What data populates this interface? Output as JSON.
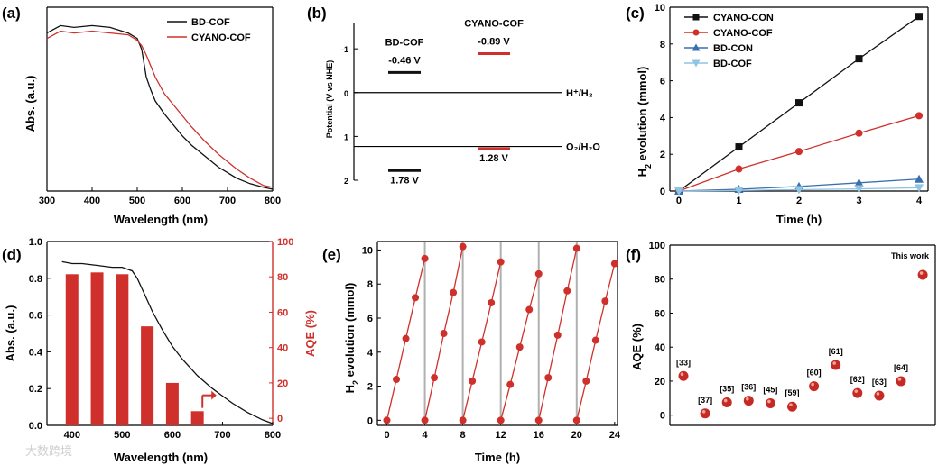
{
  "colors": {
    "black": "#111111",
    "red": "#d0302b",
    "blue": "#3c6fb0",
    "lightblue": "#8fc4e3",
    "gray": "#b0b0b0"
  },
  "watermark": "大数跨境",
  "chart_data": [
    {
      "panel": "(a)",
      "type": "line",
      "xlabel": "Wavelength (nm)",
      "ylabel": "Abs. (a.u.)",
      "xlim": [
        300,
        800
      ],
      "xticks": [
        300,
        400,
        500,
        600,
        700,
        800
      ],
      "legend": "top-right",
      "series": [
        {
          "name": "BD-COF",
          "color": "black",
          "x": [
            300,
            330,
            360,
            400,
            440,
            480,
            500,
            510,
            520,
            530,
            540,
            560,
            580,
            600,
            620,
            650,
            680,
            700,
            720,
            750,
            780,
            800
          ],
          "y": [
            0.86,
            0.9,
            0.89,
            0.9,
            0.89,
            0.86,
            0.83,
            0.77,
            0.62,
            0.55,
            0.49,
            0.42,
            0.36,
            0.3,
            0.25,
            0.19,
            0.13,
            0.1,
            0.07,
            0.04,
            0.02,
            0.01
          ]
        },
        {
          "name": "CYANO-COF",
          "color": "red",
          "x": [
            300,
            330,
            360,
            400,
            440,
            480,
            500,
            510,
            520,
            530,
            540,
            560,
            580,
            600,
            620,
            650,
            680,
            700,
            720,
            750,
            780,
            800
          ],
          "y": [
            0.83,
            0.87,
            0.86,
            0.87,
            0.86,
            0.85,
            0.82,
            0.79,
            0.74,
            0.68,
            0.62,
            0.53,
            0.47,
            0.41,
            0.35,
            0.27,
            0.2,
            0.16,
            0.12,
            0.07,
            0.03,
            0.02
          ]
        }
      ]
    },
    {
      "panel": "(b)",
      "type": "band-diagram",
      "ylabel": "Potential (V vs NHE)",
      "yticks": [
        "-1",
        "0",
        "1",
        "2"
      ],
      "ylim": [
        -1.6,
        2.0
      ],
      "reference_lines": [
        {
          "label": "H⁺/H₂",
          "value": 0
        },
        {
          "label": "O₂/H₂O",
          "value": 1.23
        }
      ],
      "materials": [
        {
          "name": "BD-COF",
          "color": "black",
          "cb": -0.46,
          "vb": 1.78,
          "cb_label": "-0.46 V",
          "vb_label": "1.78 V"
        },
        {
          "name": "CYANO-COF",
          "color": "red",
          "cb": -0.89,
          "vb": 1.28,
          "cb_label": "-0.89 V",
          "vb_label": "1.28 V"
        }
      ]
    },
    {
      "panel": "(c)",
      "type": "line",
      "xlabel": "Time (h)",
      "ylabel": "H2 evolution (mmol)",
      "xlim": [
        0,
        4
      ],
      "ylim": [
        0,
        10
      ],
      "xticks": [
        0,
        1,
        2,
        3,
        4
      ],
      "yticks": [
        0,
        2,
        4,
        6,
        8,
        10
      ],
      "legend": "top-left",
      "x": [
        0,
        1,
        2,
        3,
        4
      ],
      "series": [
        {
          "name": "CYANO-CON",
          "color": "black",
          "marker": "square",
          "values": [
            0,
            2.4,
            4.8,
            7.2,
            9.5
          ]
        },
        {
          "name": "CYANO-COF",
          "color": "red",
          "marker": "circle",
          "values": [
            0,
            1.2,
            2.15,
            3.15,
            4.1
          ]
        },
        {
          "name": "BD-CON",
          "color": "blue",
          "marker": "triangle-up",
          "values": [
            0,
            0.1,
            0.25,
            0.45,
            0.65
          ]
        },
        {
          "name": "BD-COF",
          "color": "lightblue",
          "marker": "triangle-down",
          "values": [
            0,
            0.03,
            0.08,
            0.12,
            0.18
          ]
        }
      ]
    },
    {
      "panel": "(d)",
      "type": "bar+line",
      "xlabel": "Wavelength (nm)",
      "ylabel_left": "Abs. (a.u.)",
      "ylabel_right": "AQE (%)",
      "xlim": [
        350,
        800
      ],
      "xticks": [
        400,
        500,
        600,
        700,
        800
      ],
      "ylim_left": [
        0,
        1.0
      ],
      "yticks_left": [
        "0.0",
        "0.2",
        "0.4",
        "0.6",
        "0.8",
        "1.0"
      ],
      "ylim_right": [
        -4,
        100
      ],
      "yticks_right": [
        "0",
        "20",
        "40",
        "60",
        "80",
        "100"
      ],
      "bars": {
        "x": [
          400,
          450,
          500,
          550,
          600,
          650
        ],
        "values": [
          81.5,
          82.5,
          81.5,
          52.0,
          20.0,
          4.0
        ]
      },
      "absorbance": {
        "x": [
          380,
          400,
          420,
          450,
          480,
          500,
          520,
          530,
          540,
          560,
          580,
          600,
          620,
          650,
          680,
          700,
          720,
          750,
          780,
          800
        ],
        "y": [
          0.89,
          0.88,
          0.88,
          0.87,
          0.86,
          0.86,
          0.84,
          0.8,
          0.74,
          0.62,
          0.52,
          0.43,
          0.36,
          0.27,
          0.2,
          0.16,
          0.12,
          0.07,
          0.03,
          0.01
        ]
      }
    },
    {
      "panel": "(e)",
      "type": "line",
      "xlabel": "Time (h)",
      "ylabel": "H2 evolution (mmol)",
      "xlim": [
        -1,
        24.3
      ],
      "ylim": [
        0,
        10.5
      ],
      "xticks": [
        0,
        4,
        8,
        12,
        16,
        20,
        24
      ],
      "yticks": [
        0,
        2,
        4,
        6,
        8,
        10
      ],
      "cycles": [
        {
          "x": [
            0,
            1,
            2,
            3,
            4
          ],
          "values": [
            0,
            2.4,
            4.8,
            7.2,
            9.5
          ]
        },
        {
          "x": [
            4,
            5,
            6,
            7,
            8
          ],
          "values": [
            0,
            2.5,
            5.1,
            7.5,
            10.2
          ]
        },
        {
          "x": [
            8,
            9,
            10,
            11,
            12
          ],
          "values": [
            0,
            2.3,
            4.6,
            6.9,
            9.3
          ]
        },
        {
          "x": [
            12,
            13,
            14,
            15,
            16
          ],
          "values": [
            0,
            2.1,
            4.3,
            6.5,
            8.6
          ]
        },
        {
          "x": [
            16,
            17,
            18,
            19,
            20
          ],
          "values": [
            0,
            2.5,
            5.0,
            7.6,
            10.1
          ]
        },
        {
          "x": [
            20,
            21,
            22,
            23,
            24
          ],
          "values": [
            0,
            2.3,
            4.7,
            7.0,
            9.2
          ]
        }
      ],
      "dividers": [
        4,
        8,
        12,
        16,
        20
      ]
    },
    {
      "panel": "(f)",
      "type": "scatter",
      "ylabel": "AQE (%)",
      "ylim": [
        -6,
        100
      ],
      "yticks": [
        0,
        20,
        40,
        60,
        80,
        100
      ],
      "points": [
        {
          "label": "[33]",
          "value": 23
        },
        {
          "label": "[37]",
          "value": 1
        },
        {
          "label": "[35]",
          "value": 7.5
        },
        {
          "label": "[36]",
          "value": 8.5
        },
        {
          "label": "[45]",
          "value": 7
        },
        {
          "label": "[59]",
          "value": 5
        },
        {
          "label": "[60]",
          "value": 17
        },
        {
          "label": "[61]",
          "value": 29.5
        },
        {
          "label": "[62]",
          "value": 13
        },
        {
          "label": "[63]",
          "value": 11.5
        },
        {
          "label": "[64]",
          "value": 20
        },
        {
          "label": "This work",
          "value": 82.5
        }
      ]
    }
  ]
}
